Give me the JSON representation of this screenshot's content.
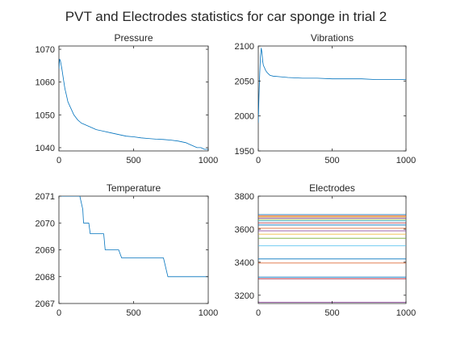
{
  "figure": {
    "title": "PVT and Electrodes statistics for car sponge in trial 2",
    "background": "#ffffff",
    "line_color": "#0072bd"
  },
  "chart_data": [
    {
      "type": "line",
      "title": "Pressure",
      "xlim": [
        0,
        1000
      ],
      "ylim": [
        1039,
        1071
      ],
      "xticks": [
        0,
        500,
        1000
      ],
      "yticks": [
        1040,
        1050,
        1060,
        1070
      ],
      "series": [
        {
          "color": "#0072bd",
          "x": [
            0,
            5,
            10,
            20,
            30,
            40,
            50,
            60,
            80,
            100,
            125,
            150,
            175,
            200,
            250,
            300,
            350,
            400,
            450,
            500,
            550,
            600,
            650,
            700,
            750,
            800,
            850,
            875,
            900,
            925,
            950,
            975,
            1000
          ],
          "y": [
            1064,
            1067,
            1066.5,
            1064,
            1061,
            1058,
            1056,
            1054,
            1052,
            1050,
            1048.5,
            1047.5,
            1047,
            1046.5,
            1045.5,
            1045,
            1044.5,
            1044,
            1043.5,
            1043.3,
            1043,
            1042.8,
            1042.6,
            1042.5,
            1042.3,
            1042,
            1041.5,
            1041,
            1040.5,
            1040,
            1040,
            1039.5,
            1039.5
          ]
        }
      ]
    },
    {
      "type": "line",
      "title": "Vibrations",
      "xlim": [
        0,
        1000
      ],
      "ylim": [
        1950,
        2100
      ],
      "xticks": [
        0,
        500,
        1000
      ],
      "yticks": [
        1950,
        2000,
        2050,
        2100
      ],
      "series": [
        {
          "color": "#0072bd",
          "x": [
            0,
            5,
            10,
            15,
            20,
            25,
            30,
            35,
            40,
            50,
            60,
            70,
            80,
            100,
            150,
            200,
            300,
            400,
            500,
            600,
            700,
            800,
            900,
            1000
          ],
          "y": [
            1990,
            2030,
            2060,
            2085,
            2097,
            2090,
            2078,
            2072,
            2070,
            2065,
            2062,
            2060,
            2058,
            2057,
            2056,
            2055,
            2054,
            2054,
            2053,
            2053,
            2053,
            2052,
            2052,
            2052
          ]
        }
      ]
    },
    {
      "type": "line",
      "title": "Temperature",
      "xlim": [
        0,
        1000
      ],
      "ylim": [
        2067,
        2071
      ],
      "xticks": [
        0,
        500,
        1000
      ],
      "yticks": [
        2067,
        2068,
        2069,
        2070,
        2071
      ],
      "series": [
        {
          "color": "#0072bd",
          "x": [
            0,
            100,
            140,
            160,
            165,
            180,
            200,
            210,
            250,
            300,
            310,
            350,
            390,
            400,
            420,
            450,
            500,
            600,
            650,
            700,
            730,
            750,
            800,
            850,
            900,
            950,
            1000
          ],
          "y": [
            2071,
            2071,
            2071,
            2070.5,
            2070,
            2070,
            2070,
            2069.6,
            2069.6,
            2069.6,
            2069,
            2069,
            2069,
            2069,
            2068.7,
            2068.7,
            2068.7,
            2068.7,
            2068.7,
            2068.7,
            2068,
            2068,
            2068,
            2068,
            2068,
            2068,
            2068
          ]
        }
      ]
    },
    {
      "type": "line",
      "title": "Electrodes",
      "xlim": [
        0,
        1000
      ],
      "ylim": [
        3150,
        3800
      ],
      "xticks": [
        0,
        500,
        1000
      ],
      "yticks": [
        3200,
        3400,
        3600,
        3800
      ],
      "series": [
        {
          "color": "#0072bd",
          "x": [
            0,
            1000
          ],
          "y": [
            3688,
            3688
          ]
        },
        {
          "color": "#d95319",
          "x": [
            0,
            1000
          ],
          "y": [
            3681,
            3681
          ]
        },
        {
          "color": "#edb120",
          "x": [
            0,
            1000
          ],
          "y": [
            3674,
            3674
          ]
        },
        {
          "color": "#7e2f8e",
          "x": [
            0,
            1000
          ],
          "y": [
            3667,
            3667
          ]
        },
        {
          "color": "#77ac30",
          "x": [
            0,
            1000
          ],
          "y": [
            3658,
            3658
          ]
        },
        {
          "color": "#4dbeee",
          "x": [
            0,
            1000
          ],
          "y": [
            3650,
            3650
          ]
        },
        {
          "color": "#a2142f",
          "x": [
            0,
            1000
          ],
          "y": [
            3638,
            3638
          ]
        },
        {
          "color": "#0072bd",
          "x": [
            0,
            1000
          ],
          "y": [
            3625,
            3625
          ]
        },
        {
          "color": "#d95319",
          "x": [
            0,
            1000
          ],
          "y": [
            3605,
            3605
          ]
        },
        {
          "color": "#7e2f8e",
          "x": [
            0,
            1000
          ],
          "y": [
            3590,
            3590
          ]
        },
        {
          "color": "#edb120",
          "x": [
            0,
            1000
          ],
          "y": [
            3570,
            3570
          ]
        },
        {
          "color": "#77ac30",
          "x": [
            0,
            1000
          ],
          "y": [
            3545,
            3545
          ]
        },
        {
          "color": "#4dbeee",
          "x": [
            0,
            1000
          ],
          "y": [
            3500,
            3500
          ]
        },
        {
          "color": "#0072bd",
          "x": [
            0,
            1000
          ],
          "y": [
            3420,
            3420
          ]
        },
        {
          "color": "#d95319",
          "x": [
            0,
            1000
          ],
          "y": [
            3395,
            3395
          ]
        },
        {
          "color": "#0072bd",
          "x": [
            0,
            1000
          ],
          "y": [
            3310,
            3310
          ]
        },
        {
          "color": "#a2142f",
          "x": [
            0,
            1000
          ],
          "y": [
            3300,
            3300
          ]
        },
        {
          "color": "#7e2f8e",
          "x": [
            0,
            1000
          ],
          "y": [
            3158,
            3158
          ]
        }
      ]
    }
  ]
}
